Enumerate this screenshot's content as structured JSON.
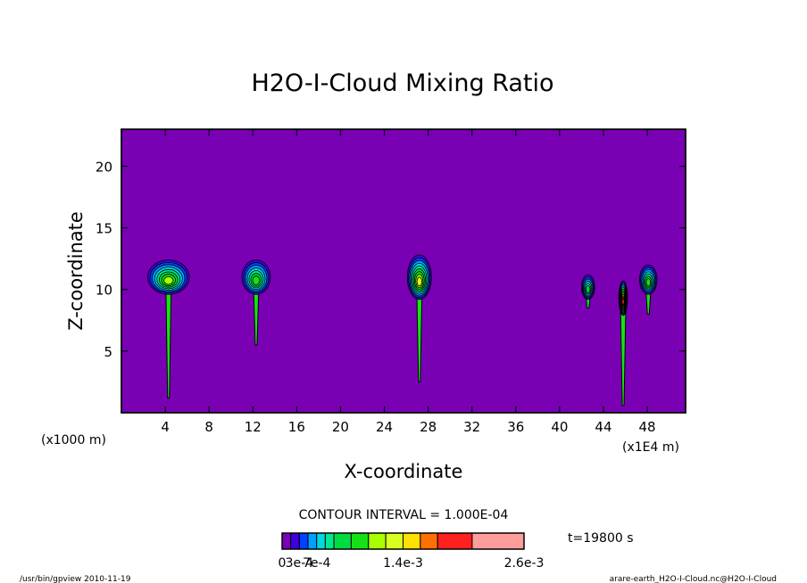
{
  "chart_data": {
    "type": "heatmap",
    "title": "H2O-I-Cloud Mixing Ratio",
    "xlabel": "X-coordinate",
    "ylabel": "Z-coordinate",
    "x_unit_left": "(x1000 m)",
    "x_unit_right": "(x1E4 m)",
    "xlim": [
      0,
      51.5
    ],
    "ylim": [
      0,
      23
    ],
    "x_ticks": [
      4,
      8,
      12,
      16,
      20,
      24,
      28,
      32,
      36,
      40,
      44,
      48
    ],
    "y_ticks": [
      5,
      10,
      15,
      20
    ],
    "background_color": "#7a00b4",
    "contour_interval_label": "CONTOUR INTERVAL = 1.000E-04",
    "time_label": "t=19800 s",
    "colorbar": {
      "colors": [
        "#7a00b4",
        "#4000e0",
        "#0040ff",
        "#00a0ff",
        "#00d8e0",
        "#00e890",
        "#00dc40",
        "#18e018",
        "#a8ff00",
        "#d8ff20",
        "#ffe000",
        "#ff7000",
        "#ff2020",
        "#ff9c9c"
      ],
      "weights": [
        1,
        1,
        1,
        1,
        1,
        1,
        2,
        2,
        2,
        2,
        2,
        2,
        4,
        6
      ],
      "tick_labels": [
        "0",
        "3e-4",
        "7e-4",
        "1.4e-3",
        "2.6e-3"
      ],
      "tick_values": [
        0,
        0.0003,
        0.0007,
        0.0014,
        0.0026
      ]
    },
    "features": [
      {
        "x": 4.3,
        "z": 11.0,
        "rx": 1.9,
        "rz": 1.4,
        "level": 8,
        "stem_z": 1.2
      },
      {
        "x": 12.3,
        "z": 11.0,
        "rx": 1.3,
        "rz": 1.4,
        "level": 7,
        "stem_z": 5.5
      },
      {
        "x": 27.2,
        "z": 11.0,
        "rx": 1.1,
        "rz": 1.8,
        "level": 9,
        "stem_z": 2.5
      },
      {
        "x": 42.6,
        "z": 10.2,
        "rx": 0.6,
        "rz": 1.0,
        "level": 6,
        "stem_z": 8.5
      },
      {
        "x": 45.8,
        "z": 9.3,
        "rx": 0.4,
        "rz": 1.4,
        "level": 12,
        "stem_z": 0.6
      },
      {
        "x": 48.1,
        "z": 10.8,
        "rx": 0.8,
        "rz": 1.2,
        "level": 7,
        "stem_z": 8.0
      }
    ]
  },
  "footer": {
    "left": "/usr/bin/gpview  2010-11-19",
    "right": "arare-earth_H2O-I-Cloud.nc@H2O-I-Cloud"
  }
}
